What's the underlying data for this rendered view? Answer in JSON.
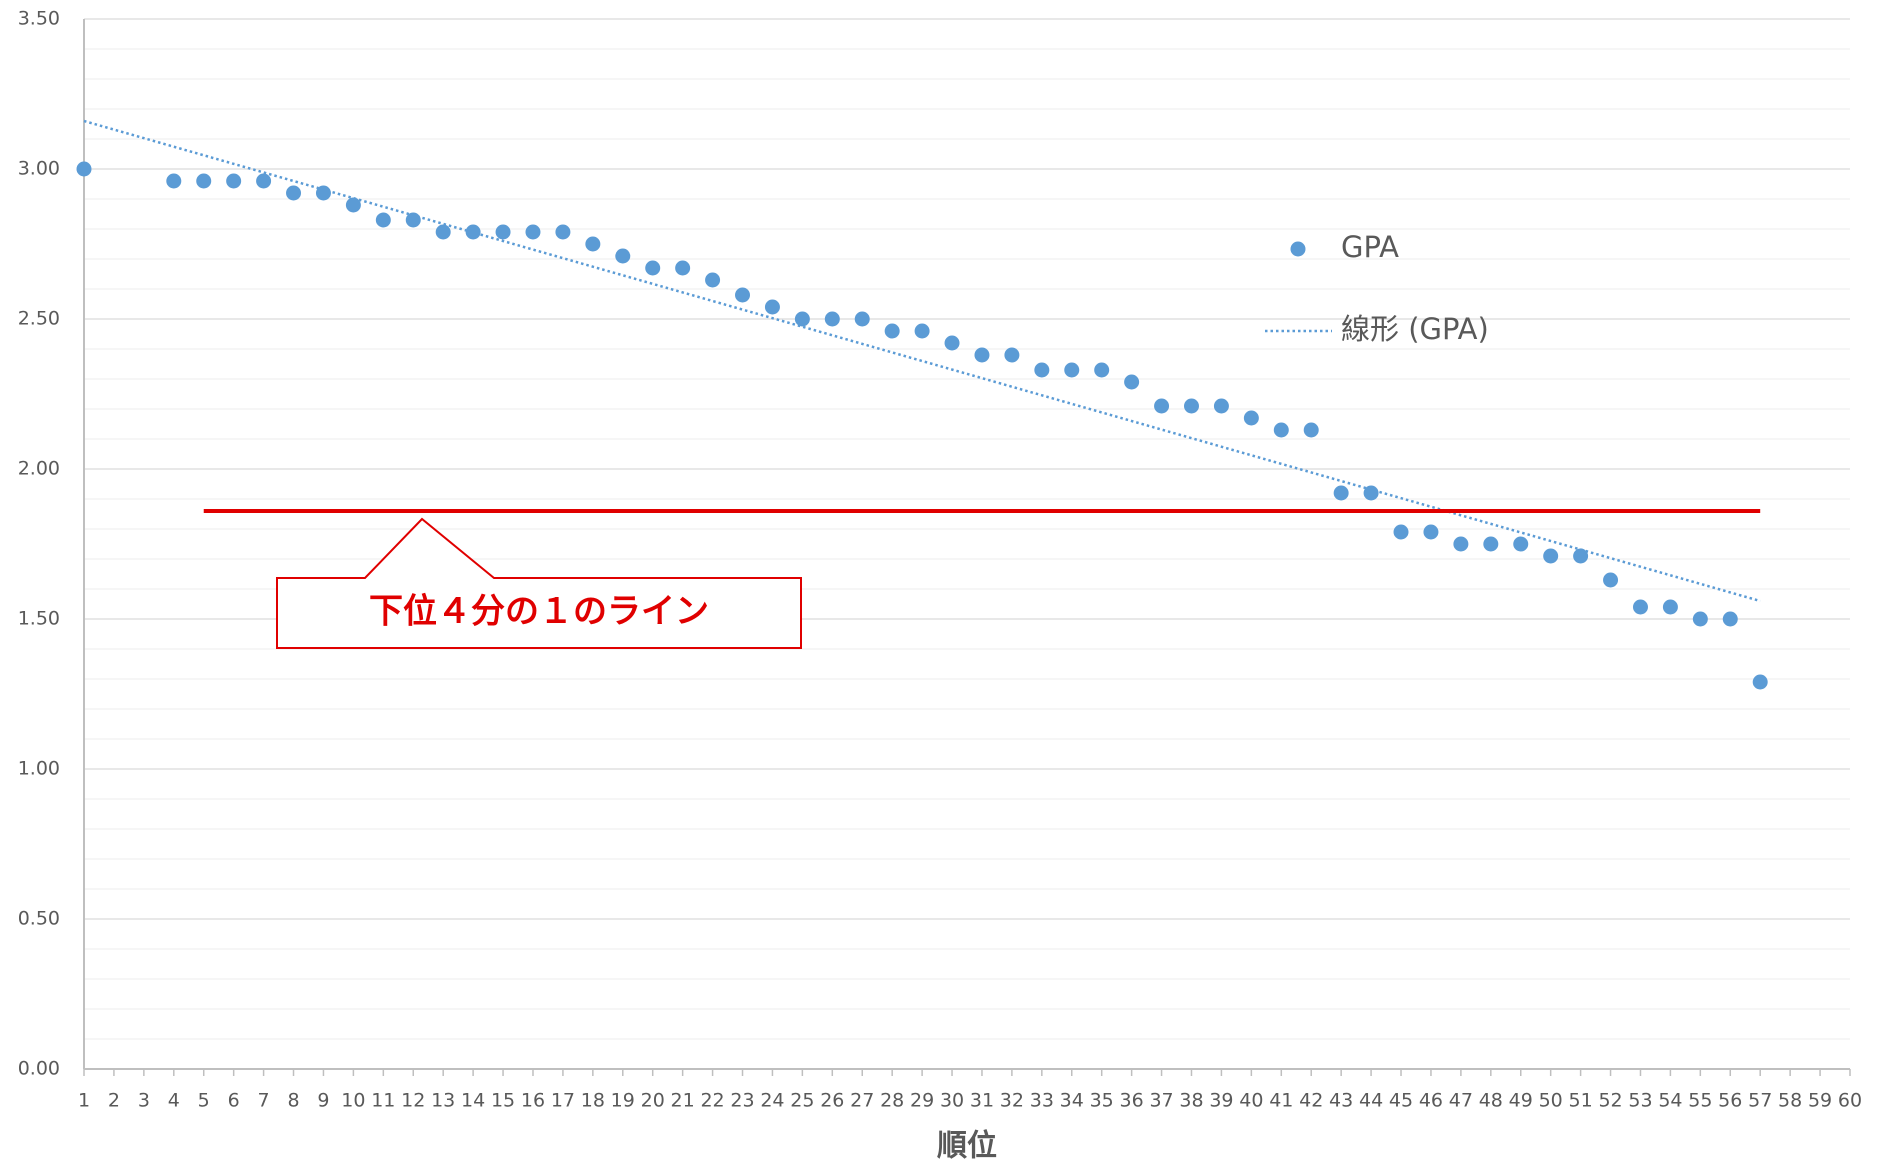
{
  "chart_data": {
    "type": "scatter",
    "x_label": "順位",
    "xlim": [
      1,
      60
    ],
    "xticks": [
      1,
      2,
      3,
      4,
      5,
      6,
      7,
      8,
      9,
      10,
      11,
      12,
      13,
      14,
      15,
      16,
      17,
      18,
      19,
      20,
      21,
      22,
      23,
      24,
      25,
      26,
      27,
      28,
      29,
      30,
      31,
      32,
      33,
      34,
      35,
      36,
      37,
      38,
      39,
      40,
      41,
      42,
      43,
      44,
      45,
      46,
      47,
      48,
      49,
      50,
      51,
      52,
      53,
      54,
      55,
      56,
      57,
      58,
      59,
      60
    ],
    "ylim": [
      0,
      3.5
    ],
    "yticks": [
      {
        "value": 0,
        "label": "0.00"
      },
      {
        "value": 0.5,
        "label": "0.50"
      },
      {
        "value": 1,
        "label": "1.00"
      },
      {
        "value": 1.5,
        "label": "1.50"
      },
      {
        "value": 2,
        "label": "2.00"
      },
      {
        "value": 2.5,
        "label": "2.50"
      },
      {
        "value": 3,
        "label": "3.00"
      },
      {
        "value": 3.5,
        "label": "3.50"
      }
    ],
    "yminor_ticks": [
      0.1,
      0.2,
      0.3,
      0.4,
      0.6,
      0.7,
      0.8,
      0.9,
      1.1,
      1.2,
      1.3,
      1.4,
      1.6,
      1.7,
      1.8,
      1.9,
      2.1,
      2.2,
      2.3,
      2.4,
      2.6,
      2.7,
      2.8,
      2.9,
      3.1,
      3.2,
      3.3,
      3.4
    ],
    "grid": true,
    "series": [
      {
        "name": "GPA",
        "color": "#5b9bd5",
        "x": [
          1,
          4,
          5,
          6,
          7,
          8,
          9,
          10,
          11,
          12,
          13,
          14,
          15,
          16,
          17,
          18,
          19,
          20,
          21,
          22,
          23,
          24,
          25,
          26,
          27,
          28,
          29,
          30,
          31,
          32,
          33,
          34,
          35,
          36,
          37,
          38,
          39,
          40,
          41,
          42,
          43,
          44,
          45,
          46,
          47,
          48,
          49,
          50,
          51,
          52,
          53,
          54,
          55,
          56,
          57
        ],
        "values": [
          3.0,
          2.96,
          2.96,
          2.96,
          2.96,
          2.92,
          2.92,
          2.88,
          2.83,
          2.83,
          2.79,
          2.79,
          2.79,
          2.79,
          2.79,
          2.75,
          2.71,
          2.67,
          2.67,
          2.63,
          2.58,
          2.54,
          2.5,
          2.5,
          2.5,
          2.46,
          2.46,
          2.42,
          2.38,
          2.38,
          2.33,
          2.33,
          2.33,
          2.29,
          2.21,
          2.21,
          2.21,
          2.17,
          2.13,
          2.13,
          1.92,
          1.92,
          1.79,
          1.79,
          1.75,
          1.75,
          1.75,
          1.71,
          1.71,
          1.63,
          1.54,
          1.54,
          1.5,
          1.5,
          1.29
        ]
      }
    ],
    "trendline": {
      "name": "線形 (GPA)",
      "color": "#5b9bd5",
      "x": [
        1,
        57
      ],
      "values": [
        3.16,
        1.56
      ]
    },
    "reference_line": {
      "value": 1.86,
      "x": [
        5,
        57
      ],
      "color": "#e00000",
      "label": "下位４分の１のライン"
    }
  }
}
